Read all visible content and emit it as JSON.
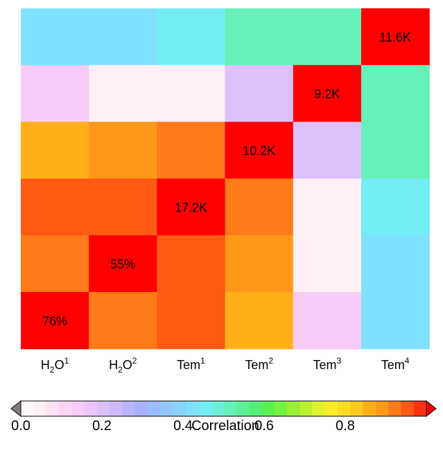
{
  "chart_data": {
    "type": "heatmap",
    "title": "",
    "columns": [
      {
        "base": "H",
        "sub": "2",
        "rest": "O",
        "sup": "1"
      },
      {
        "base": "H",
        "sub": "2",
        "rest": "O",
        "sup": "2"
      },
      {
        "base": "Tem",
        "sub": "",
        "rest": "",
        "sup": "1"
      },
      {
        "base": "Tem",
        "sub": "",
        "rest": "",
        "sup": "2"
      },
      {
        "base": "Tem",
        "sub": "",
        "rest": "",
        "sup": "3"
      },
      {
        "base": "Tem",
        "sub": "",
        "rest": "",
        "sup": "4"
      }
    ],
    "values_top_to_bottom": [
      [
        0.41,
        0.43,
        0.45,
        0.5,
        0.5,
        null
      ],
      [
        0.15,
        0.04,
        0.04,
        0.21,
        null,
        0.5
      ],
      [
        0.85,
        0.89,
        0.92,
        null,
        0.21,
        0.5
      ],
      [
        0.94,
        0.94,
        null,
        0.92,
        0.04,
        0.45
      ],
      [
        0.92,
        null,
        0.94,
        0.89,
        0.04,
        0.43
      ],
      [
        null,
        0.92,
        0.94,
        0.85,
        0.15,
        0.41
      ]
    ],
    "diagonal_labels_top_to_bottom": [
      "11.6K",
      "9.2K",
      "10.2K",
      "17.2K",
      "55%",
      "76%"
    ],
    "diagonal_color": "#ff0000",
    "colorbar": {
      "label": "Correlation",
      "ticks": [
        "0.0",
        "0.2",
        "0.4",
        "0.6",
        "0.8"
      ],
      "tick_values": [
        0.0,
        0.2,
        0.4,
        0.6,
        0.8
      ],
      "range": [
        0.0,
        1.0
      ],
      "under_color": "#808080",
      "over_color": "#ff0000",
      "colors": [
        "#fff8f8",
        "#fff0f5",
        "#ffe2f4",
        "#ffd4f2",
        "#f6ccf6",
        "#eac6f8",
        "#dcc0fa",
        "#ccbafc",
        "#bab3fd",
        "#aab2fe",
        "#9cbcff",
        "#92c8ff",
        "#88d4ff",
        "#80e0ff",
        "#74ecf4",
        "#6ef0d8",
        "#66f0ba",
        "#5cf098",
        "#50f078",
        "#58f050",
        "#78f040",
        "#98f038",
        "#bcf030",
        "#e0f030",
        "#f8ec2a",
        "#ffdc24",
        "#ffc81e",
        "#ffb018",
        "#ff9818",
        "#ff7a18",
        "#ff5a14",
        "#ff3210"
      ]
    }
  }
}
